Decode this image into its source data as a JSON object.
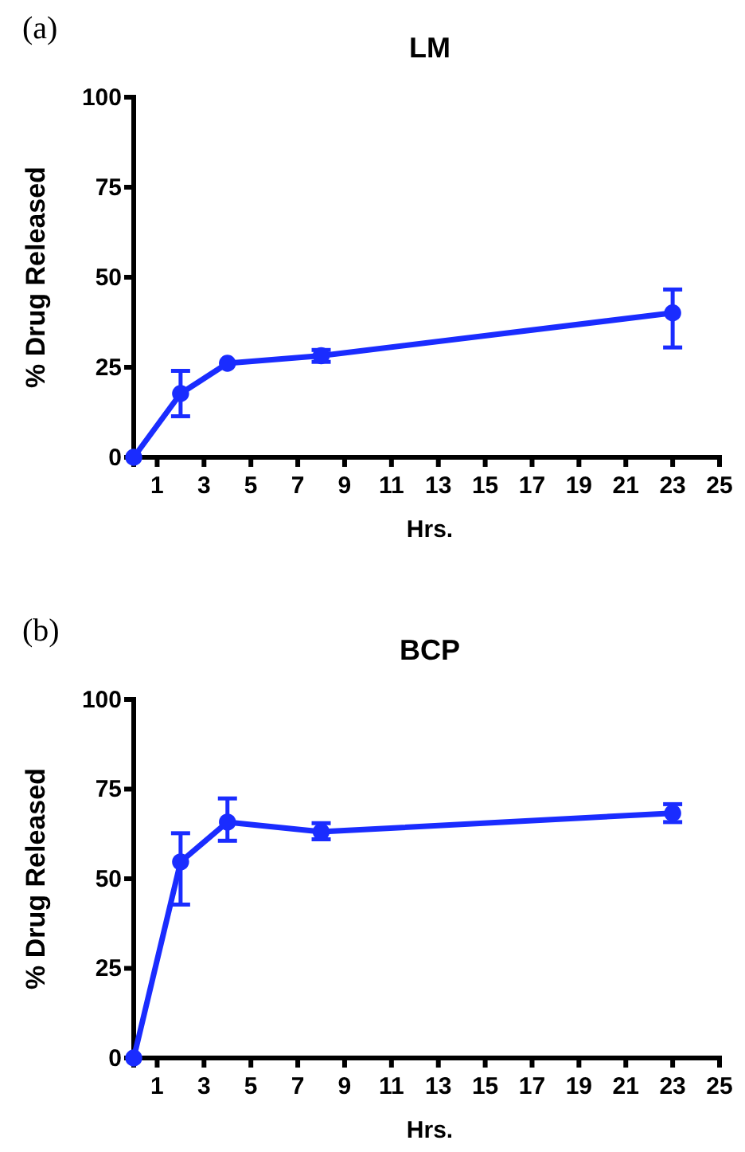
{
  "chart_data": [
    {
      "type": "line",
      "title": "LM",
      "xlabel": "Hrs.",
      "ylabel": "% Drug Released",
      "annotations": [
        "(a)"
      ],
      "x": [
        0,
        2,
        4,
        8,
        23
      ],
      "series": [
        {
          "color": "#1a2cff",
          "values": [
            0,
            17.7,
            26.1,
            28.2,
            40.1
          ],
          "errors": [
            null,
            [
              11.4,
              24
            ],
            null,
            [
              26.5,
              29.8
            ],
            [
              30.5,
              46.6
            ]
          ]
        }
      ],
      "xlim": [
        0,
        25
      ],
      "ylim": [
        0,
        100
      ],
      "xticks": [
        1,
        3,
        5,
        7,
        9,
        11,
        13,
        15,
        17,
        19,
        21,
        23,
        25
      ],
      "yticks": [
        0,
        25,
        50,
        75,
        100
      ],
      "marker": "circle",
      "line_style": "solid"
    },
    {
      "type": "line",
      "title": "BCP",
      "xlabel": "Hrs.",
      "ylabel": "% Drug Released",
      "annotations": [
        "(b)"
      ],
      "x": [
        0,
        2,
        4,
        8,
        23
      ],
      "series": [
        {
          "color": "#1a2cff",
          "values": [
            0,
            54.7,
            65.8,
            63.1,
            68.3
          ],
          "errors": [
            null,
            [
              42.8,
              62.7
            ],
            [
              60.6,
              72.4
            ],
            [
              61.0,
              65.5
            ],
            [
              65.8,
              70.8
            ]
          ]
        }
      ],
      "xlim": [
        0,
        25
      ],
      "ylim": [
        0,
        100
      ],
      "xticks": [
        1,
        3,
        5,
        7,
        9,
        11,
        13,
        15,
        17,
        19,
        21,
        23,
        25
      ],
      "yticks": [
        0,
        25,
        50,
        75,
        100
      ],
      "marker": "circle",
      "line_style": "solid"
    }
  ]
}
